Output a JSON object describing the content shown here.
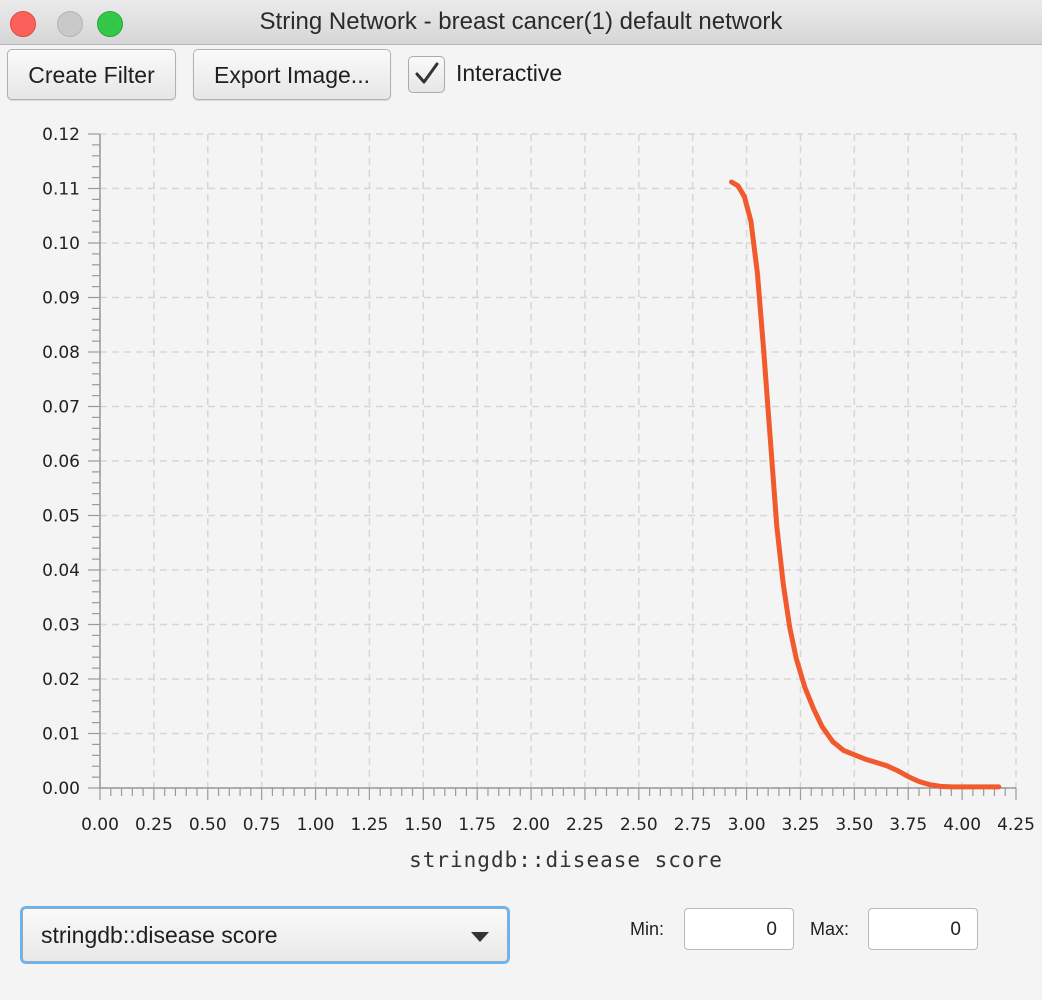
{
  "window": {
    "title": "String Network - breast cancer(1) default network"
  },
  "toolbar": {
    "create_filter_label": "Create Filter",
    "export_image_label": "Export Image...",
    "interactive_label": "Interactive",
    "interactive_checked": true
  },
  "chart_data": {
    "type": "line",
    "title": "",
    "xlabel": "stringdb::disease score",
    "ylabel": "",
    "xlim": [
      0,
      4.25
    ],
    "ylim": [
      0,
      0.12
    ],
    "x_ticks": [
      "0.00",
      "0.25",
      "0.50",
      "0.75",
      "1.00",
      "1.25",
      "1.50",
      "1.75",
      "2.00",
      "2.25",
      "2.50",
      "2.75",
      "3.00",
      "3.25",
      "3.50",
      "3.75",
      "4.00",
      "4.25"
    ],
    "y_ticks": [
      "0.00",
      "0.01",
      "0.02",
      "0.03",
      "0.04",
      "0.05",
      "0.06",
      "0.07",
      "0.08",
      "0.09",
      "0.10",
      "0.11",
      "0.12"
    ],
    "grid": true,
    "color": "#f05a2d",
    "series": [
      {
        "x": [
          2.93,
          2.96,
          2.99,
          3.02,
          3.05,
          3.08,
          3.11,
          3.14,
          3.17,
          3.2,
          3.23,
          3.27,
          3.31,
          3.35,
          3.4,
          3.45,
          3.5,
          3.55,
          3.6,
          3.65,
          3.7,
          3.75,
          3.8,
          3.85,
          3.9,
          3.95,
          4.0,
          4.05,
          4.1,
          4.17
        ],
        "y": [
          0.1112,
          0.1105,
          0.1085,
          0.104,
          0.0945,
          0.08,
          0.064,
          0.048,
          0.0375,
          0.0295,
          0.0238,
          0.0185,
          0.0146,
          0.0113,
          0.0085,
          0.0069,
          0.0061,
          0.0053,
          0.0047,
          0.0041,
          0.0032,
          0.0021,
          0.0012,
          0.0006,
          0.0003,
          0.0002,
          0.0002,
          0.0002,
          0.0002,
          0.0002
        ]
      }
    ]
  },
  "column_selector": {
    "selected": "stringdb::disease score"
  },
  "range": {
    "min_label": "Min:",
    "min_value": "0",
    "max_label": "Max:",
    "max_value": "0"
  }
}
